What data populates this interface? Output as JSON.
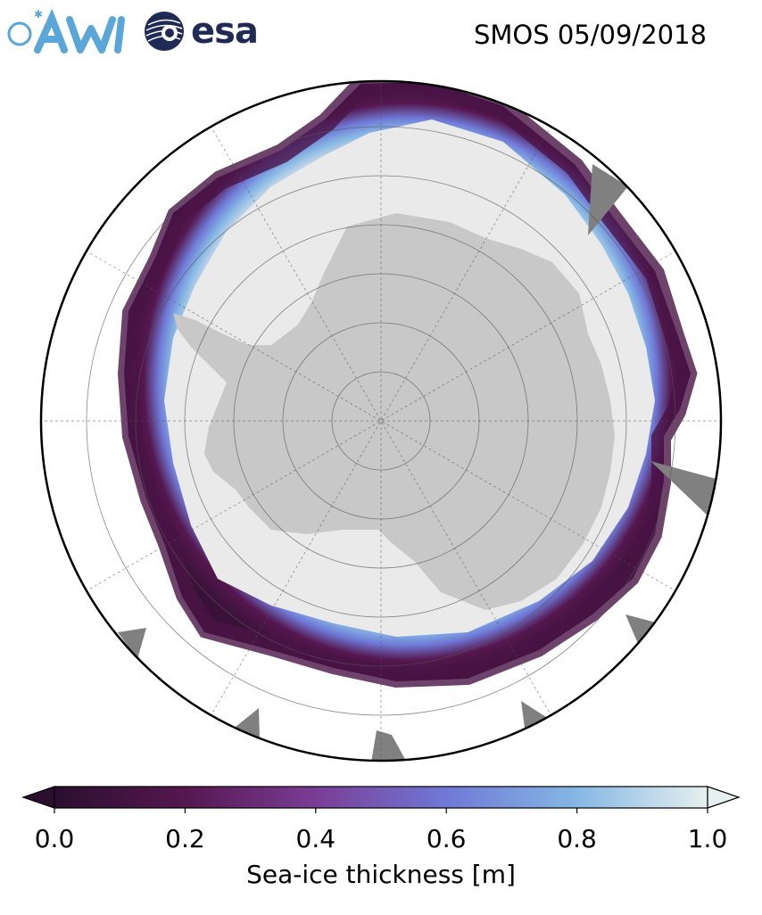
{
  "header": {
    "title": "SMOS 05/09/2018",
    "logos": [
      {
        "name": "AWI",
        "text": "AWI",
        "color": "#5aa6d8"
      },
      {
        "name": "esa",
        "text": "esa",
        "color": "#1f2a55"
      }
    ]
  },
  "map": {
    "projection": "south-polar-stereographic",
    "land_color": "#c8c8c8",
    "open_ocean_color": "#ffffff",
    "thick_ice_color": "#eaeaea",
    "missing_data_color": "#808080",
    "graticule": true
  },
  "colorbar": {
    "label": "Sea-ice thickness [m]",
    "ticks": [
      "0.0",
      "0.2",
      "0.4",
      "0.6",
      "0.8",
      "1.0"
    ],
    "min": 0.0,
    "max": 1.0,
    "extend": "both",
    "colormap_stops": [
      "#2a0f2f",
      "#55174f",
      "#7a3d96",
      "#6f79d6",
      "#86b7e4",
      "#e6f0ef"
    ]
  }
}
